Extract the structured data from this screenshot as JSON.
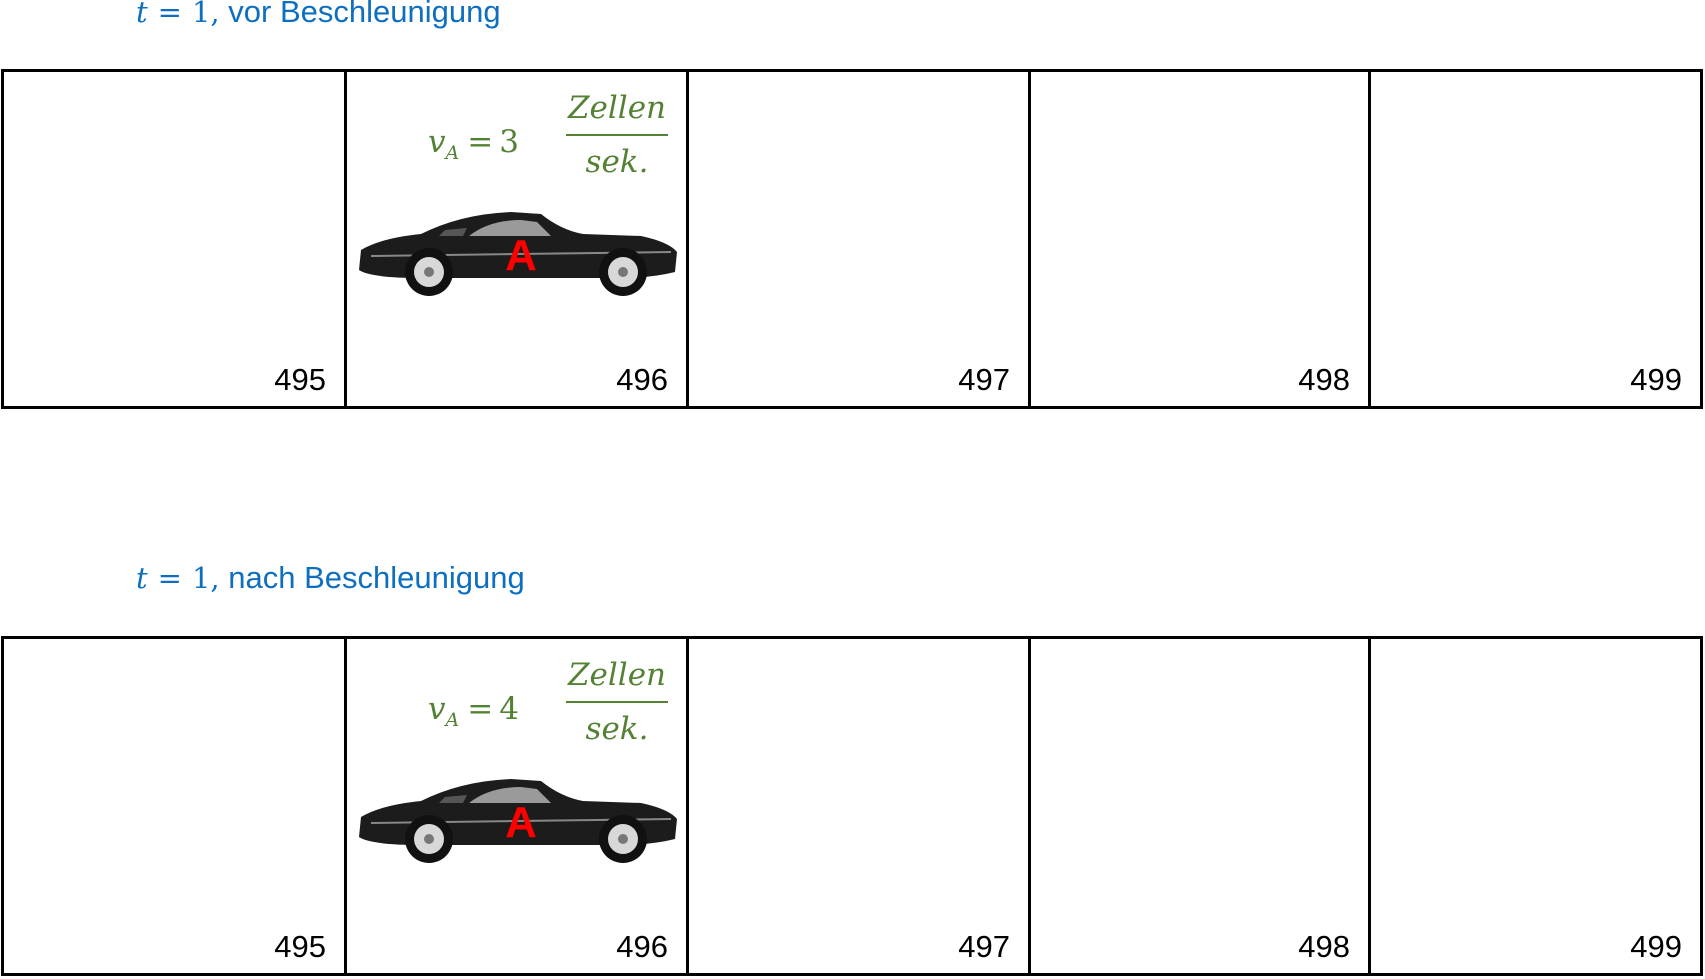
{
  "panels": [
    {
      "heading_math": {
        "var": "t",
        "eq": "=",
        "val": "1,"
      },
      "heading_text": "vor Beschleunigung",
      "cells": [
        "495",
        "496",
        "497",
        "498",
        "499"
      ],
      "velocity": {
        "var": "v",
        "sub": "A",
        "op": "=",
        "value": "3",
        "unit_num": "Zellen",
        "unit_den": "sek."
      },
      "car_label": "A"
    },
    {
      "heading_math": {
        "var": "t",
        "eq": "=",
        "val": "1,"
      },
      "heading_text": "nach Beschleunigung",
      "cells": [
        "495",
        "496",
        "497",
        "498",
        "499"
      ],
      "velocity": {
        "var": "v",
        "sub": "A",
        "op": "=",
        "value": "4",
        "unit_num": "Zellen",
        "unit_den": "sek."
      },
      "car_label": "A"
    }
  ],
  "colors": {
    "heading": "#0e6fc0",
    "velocity": "#548235",
    "car_label": "#ff0000",
    "car_body": "#1c1c1c"
  }
}
